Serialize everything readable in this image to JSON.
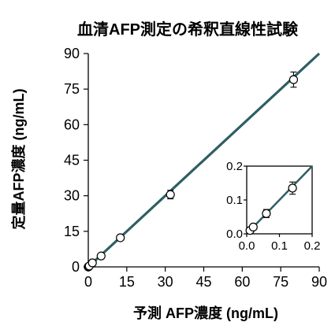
{
  "chart_data": [
    {
      "type": "scatter",
      "title": "血清AFP測定の希釈直線性試験",
      "xlabel": "予測 AFP濃度 (ng/mL)",
      "ylabel": "定量AFP濃度 (ng/mL)",
      "xlim": [
        0,
        90
      ],
      "ylim": [
        0,
        90
      ],
      "xticks": [
        "0",
        "15",
        "30",
        "45",
        "60",
        "75",
        "90"
      ],
      "yticks": [
        "0",
        "15",
        "30",
        "45",
        "60",
        "75",
        "90"
      ],
      "grid": false,
      "legend": "none",
      "line_color": "#2e5e62",
      "marker_face": "#ffffff",
      "marker_edge": "#000000",
      "fit_line": {
        "x": [
          0,
          90
        ],
        "y": [
          0,
          90
        ]
      },
      "series": [
        {
          "x": [
            0.0,
            0.02,
            0.06,
            0.13,
            0.4,
            1.6,
            5.0,
            12.5,
            32,
            80
          ],
          "y": [
            0.0,
            0.02,
            0.06,
            0.13,
            0.4,
            1.7,
            4.6,
            12.3,
            30.5,
            79
          ],
          "error": [
            0.1,
            0.1,
            0.1,
            0.2,
            0.3,
            0.5,
            0.6,
            0.8,
            1.8,
            3.2
          ]
        }
      ]
    },
    {
      "type": "scatter",
      "title": "",
      "xlabel": "",
      "ylabel": "",
      "xlim": [
        0,
        0.2
      ],
      "ylim": [
        0,
        0.2
      ],
      "xticks": [
        "0.0",
        "0.1",
        "0.2"
      ],
      "yticks": [
        "0.0",
        "0.1",
        "0.2"
      ],
      "grid": false,
      "legend": "none",
      "fit_line": {
        "x": [
          0,
          0.2
        ],
        "y": [
          0,
          0.2
        ]
      },
      "series": [
        {
          "x": [
            0.01,
            0.02,
            0.06,
            0.14
          ],
          "y": [
            0.01,
            0.02,
            0.06,
            0.135
          ],
          "error": [
            0.004,
            0.006,
            0.012,
            0.018
          ]
        }
      ]
    }
  ]
}
